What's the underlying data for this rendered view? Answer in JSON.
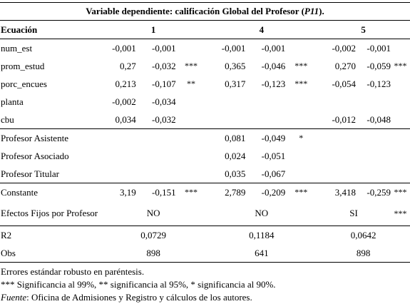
{
  "title_prefix": "Variable dependiente: calificación Global del Profesor (",
  "title_var": "P11",
  "title_suffix": ").",
  "header": {
    "label": "Ecuación",
    "eq1": "1",
    "eq2": "4",
    "eq3": "5"
  },
  "rows": [
    {
      "label": "num_est",
      "v": [
        "-0,001",
        "-0,001",
        "",
        "-0,001",
        "-0,001",
        "",
        "-0,002",
        "-0,001",
        ""
      ]
    },
    {
      "label": "prom_estud",
      "v": [
        "0,27",
        "-0,032",
        "***",
        "0,365",
        "-0,046",
        "***",
        "0,270",
        "-0,059",
        "***"
      ]
    },
    {
      "label": "porc_encues",
      "v": [
        "0,213",
        "-0,107",
        "**",
        "0,317",
        "-0,123",
        "***",
        "-0,054",
        "-0,123",
        ""
      ]
    },
    {
      "label": "planta",
      "v": [
        "-0,002",
        "-0,034",
        "",
        "",
        "",
        "",
        "",
        "",
        ""
      ]
    },
    {
      "label": "cbu",
      "v": [
        "0,034",
        "-0,032",
        "",
        "",
        "",
        "",
        "-0,012",
        "-0,048",
        ""
      ]
    },
    {
      "label": "Profesor Asistente",
      "v": [
        "",
        "",
        "",
        "0,081",
        "-0,049",
        "*",
        "",
        "",
        ""
      ]
    },
    {
      "label": "Profesor Asociado",
      "v": [
        "",
        "",
        "",
        "0,024",
        "-0,051",
        "",
        "",
        "",
        ""
      ]
    },
    {
      "label": "Profesor Titular",
      "v": [
        "",
        "",
        "",
        "0,035",
        "-0,067",
        "",
        "",
        "",
        ""
      ]
    },
    {
      "label": "Constante",
      "v": [
        "3,19",
        "-0,151",
        "***",
        "2,789",
        "-0,209",
        "***",
        "3,418",
        "-0,259",
        "***"
      ]
    }
  ],
  "efectos": {
    "label": "Efectos Fijos por Profesor",
    "eq1": "NO",
    "eq2": "NO",
    "eq3": "SI",
    "sig3": "***"
  },
  "r2": {
    "label": "R2",
    "eq1": "0,0729",
    "eq2": "0,1184",
    "eq3": "0,0642"
  },
  "obs": {
    "label": "Obs",
    "eq1": "898",
    "eq2": "641",
    "eq3": "898"
  },
  "notes": {
    "line1": "Errores estándar robusto en paréntesis.",
    "line2": "*** Significancia al 99%, ** significancia al 95%, * significancia al 90%.",
    "source_label": "Fuente",
    "source_text": ": Oficina de Admisiones y Registro y cálculos de los autores."
  }
}
